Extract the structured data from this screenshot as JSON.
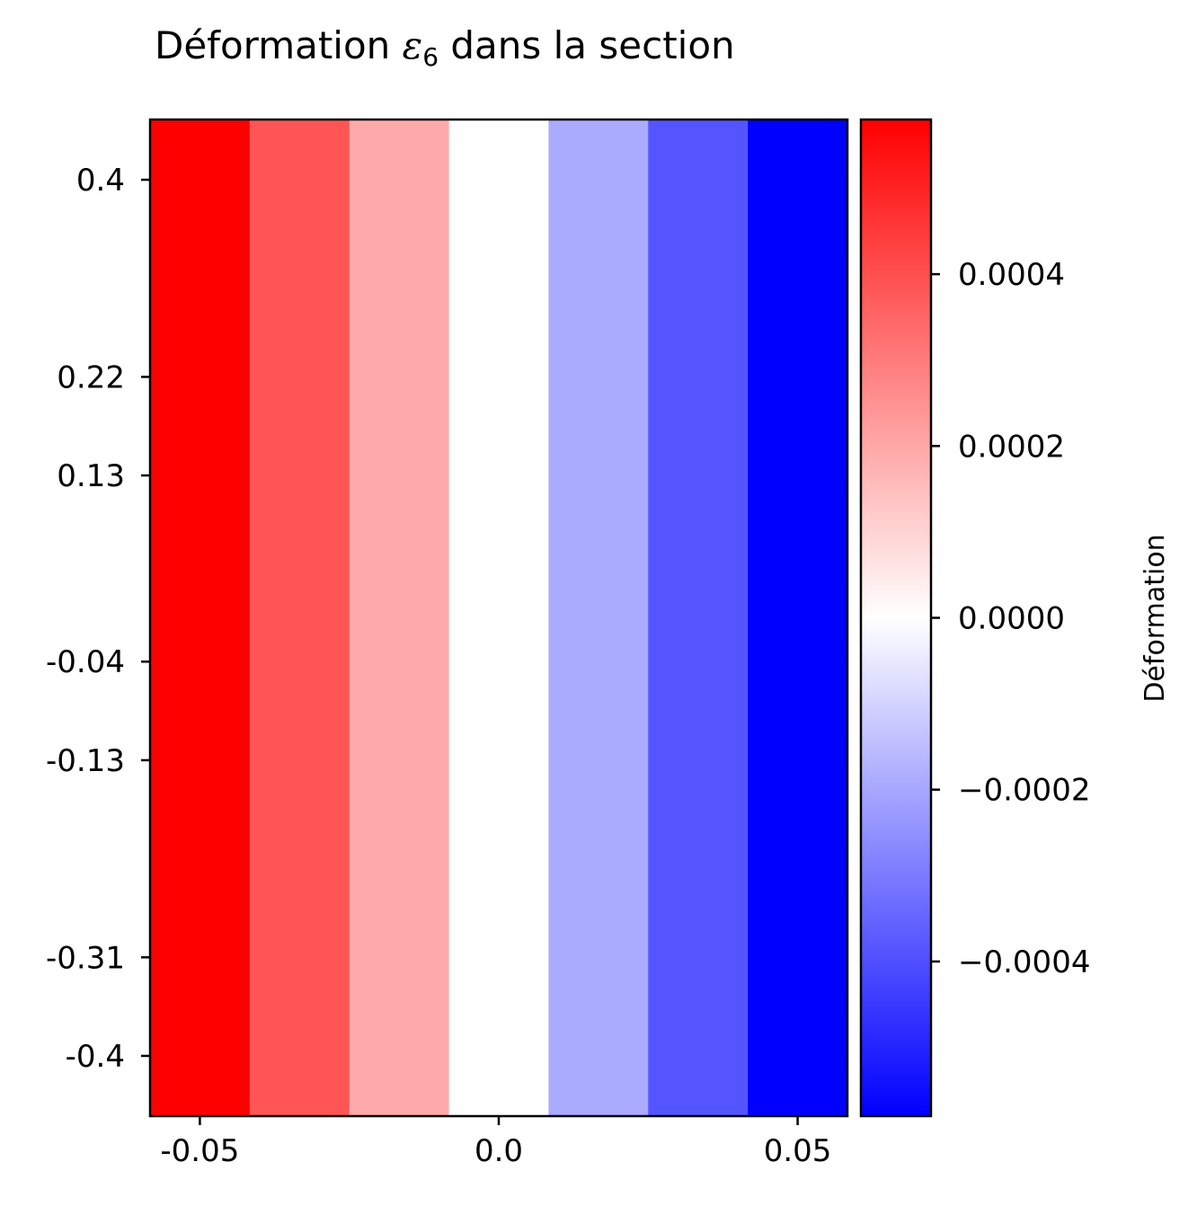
{
  "chart_data": {
    "type": "heatmap",
    "title": {
      "prefix": "Déformation ",
      "symbol": "ε",
      "subscript": "6",
      "suffix": " dans la section"
    },
    "xlabel": "",
    "ylabel": "",
    "x_ticks": [
      {
        "value": -0.05,
        "label": "-0.05"
      },
      {
        "value": 0.0,
        "label": "0.0"
      },
      {
        "value": 0.05,
        "label": "0.05"
      }
    ],
    "y_ticks": [
      {
        "value": 0.4,
        "label": "0.4"
      },
      {
        "value": 0.22,
        "label": "0.22"
      },
      {
        "value": 0.13,
        "label": "0.13"
      },
      {
        "value": -0.04,
        "label": "-0.04"
      },
      {
        "value": -0.13,
        "label": "-0.13"
      },
      {
        "value": -0.31,
        "label": "-0.31"
      },
      {
        "value": -0.4,
        "label": "-0.4"
      }
    ],
    "xlim": [
      -0.05833,
      0.05833
    ],
    "ylim": [
      -0.455,
      0.455
    ],
    "columns": [
      {
        "x_range": [
          -0.05833,
          -0.04167
        ],
        "value": 0.0005,
        "color": "#ff0000"
      },
      {
        "x_range": [
          -0.04167,
          -0.025
        ],
        "value": 0.000333,
        "color": "#ff5555"
      },
      {
        "x_range": [
          -0.025,
          -0.00833
        ],
        "value": 0.000167,
        "color": "#ffaaaa"
      },
      {
        "x_range": [
          -0.00833,
          0.00833
        ],
        "value": 0.0,
        "color": "#fefefe"
      },
      {
        "x_range": [
          0.00833,
          0.025
        ],
        "value": -0.000167,
        "color": "#aaaaff"
      },
      {
        "x_range": [
          0.025,
          0.04167
        ],
        "value": -0.000333,
        "color": "#5555ff"
      },
      {
        "x_range": [
          0.04167,
          0.05833
        ],
        "value": -0.0005,
        "color": "#0000ff"
      }
    ],
    "colorbar": {
      "label": "Déformation",
      "colormap": "bwr",
      "vmin": -0.00058,
      "vmax": 0.00058,
      "ticks": [
        {
          "value": 0.0004,
          "label": "0.0004"
        },
        {
          "value": 0.0002,
          "label": "0.0002"
        },
        {
          "value": 0.0,
          "label": "0.0000"
        },
        {
          "value": -0.0002,
          "label": "−0.0002"
        },
        {
          "value": -0.0004,
          "label": "−0.0004"
        }
      ]
    }
  }
}
